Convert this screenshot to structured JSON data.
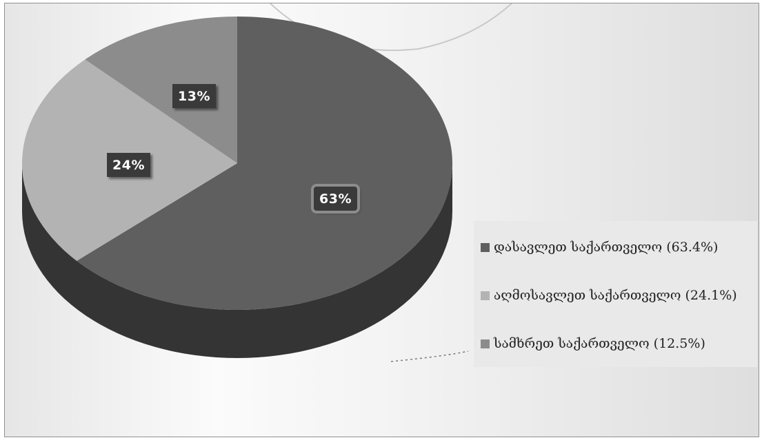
{
  "colors": {
    "background": "#f2f2f2",
    "slice_west": "#5f5f5f",
    "slice_east": "#b3b3b3",
    "slice_south": "#8c8c8c",
    "label_box": "#3a3a3a"
  },
  "chart_data": {
    "type": "pie",
    "style": "3d-pie",
    "title": "",
    "legend_position": "right",
    "categories": [
      "დასავლეთ საქართველო (63.4%)",
      "აღმოსავლეთ საქართველო (24.1%)",
      "სამხრეთ საქართველო (12.5%)"
    ],
    "values": [
      63.4,
      24.1,
      12.5
    ],
    "data_labels": [
      "63%",
      "24%",
      "13%"
    ],
    "colors": [
      "#5f5f5f",
      "#b3b3b3",
      "#8c8c8c"
    ]
  }
}
